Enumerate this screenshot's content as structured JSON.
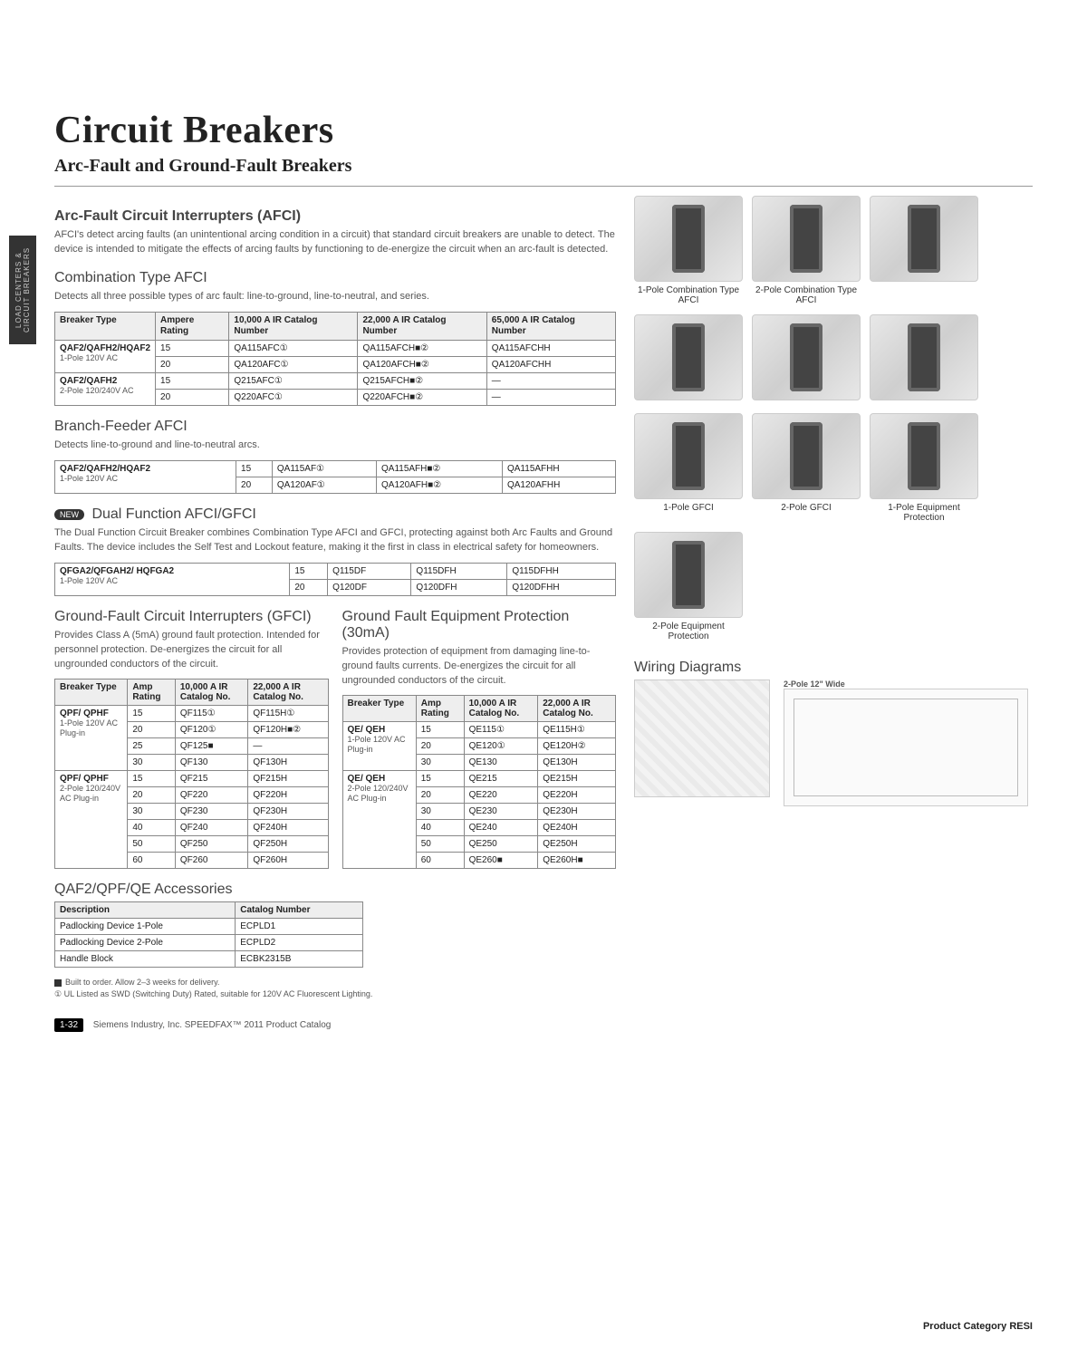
{
  "title": "Circuit Breakers",
  "subtitle": "Arc-Fault and Ground-Fault Breakers",
  "vtab": "LOAD CENTERS & CIRCUIT BREAKERS",
  "afci": {
    "heading": "Arc-Fault Circuit Interrupters (AFCI)",
    "desc": "AFCI's detect arcing faults (an unintentional arcing condition in a circuit) that standard circuit breakers are unable to detect. The device is intended to mitigate the effects of arcing faults by functioning to de-energize the circuit when an arc-fault is detected."
  },
  "comb": {
    "heading": "Combination Type AFCI",
    "desc": "Detects all three possible types of arc fault: line-to-ground, line-to-neutral, and series.",
    "cols": [
      "Breaker Type",
      "Ampere Rating",
      "10,000 A IR Catalog Number",
      "22,000 A IR Catalog Number",
      "65,000 A IR Catalog Number"
    ],
    "rows": [
      {
        "type": "QAF2/QAFH2/HQAF2",
        "sub": "1-Pole 120V AC",
        "amps": [
          "15",
          "20"
        ],
        "c10": [
          "QA115AFC①",
          "QA120AFC①"
        ],
        "c22": [
          "QA115AFCH■②",
          "QA120AFCH■②"
        ],
        "c65": [
          "QA115AFCHH",
          "QA120AFCHH"
        ]
      },
      {
        "type": "QAF2/QAFH2",
        "sub": "2-Pole 120/240V AC",
        "amps": [
          "15",
          "20"
        ],
        "c10": [
          "Q215AFC①",
          "Q220AFC①"
        ],
        "c22": [
          "Q215AFCH■②",
          "Q220AFCH■②"
        ],
        "c65": [
          "—",
          "—"
        ]
      }
    ]
  },
  "branch": {
    "heading": "Branch-Feeder AFCI",
    "desc": "Detects line-to-ground and line-to-neutral arcs.",
    "rows": [
      {
        "type": "QAF2/QAFH2/HQAF2",
        "sub": "1-Pole 120V AC",
        "amps": [
          "15",
          "20"
        ],
        "c10": [
          "QA115AF①",
          "QA120AF①"
        ],
        "c22": [
          "QA115AFH■②",
          "QA120AFH■②"
        ],
        "c65": [
          "QA115AFHH",
          "QA120AFHH"
        ]
      }
    ]
  },
  "dual": {
    "heading": "Dual Function AFCI/GFCI",
    "badge": "NEW",
    "desc": "The Dual Function Circuit Breaker combines Combination Type AFCI and GFCI, protecting against both Arc Faults and Ground Faults. The device includes the Self Test and Lockout feature, making it the first in class in electrical safety for homeowners.",
    "rows": [
      {
        "type": "QFGA2/QFGAH2/ HQFGA2",
        "sub": "1-Pole 120V AC",
        "amps": [
          "15",
          "20"
        ],
        "c10": [
          "Q115DF",
          "Q120DF"
        ],
        "c22": [
          "Q115DFH",
          "Q120DFH"
        ],
        "c65": [
          "Q115DFHH",
          "Q120DFHH"
        ]
      }
    ]
  },
  "gfci": {
    "heading": "Ground-Fault Circuit Interrupters (GFCI)",
    "desc": "Provides Class A (5mA) ground fault protection. Intended for personnel protection. De-energizes the circuit for all ungrounded conductors of the circuit.",
    "cols": [
      "Breaker Type",
      "Amp Rating",
      "10,000 A IR Catalog No.",
      "22,000 A IR Catalog No."
    ],
    "rows": [
      {
        "type": "QPF/ QPHF",
        "sub": "1-Pole 120V AC Plug-in",
        "amps": [
          "15",
          "20",
          "25",
          "30"
        ],
        "c10": [
          "QF115①",
          "QF120①",
          "QF125■",
          "QF130"
        ],
        "c22": [
          "QF115H①",
          "QF120H■②",
          "—",
          "QF130H"
        ]
      },
      {
        "type": "QPF/ QPHF",
        "sub": "2-Pole 120/240V AC Plug-in",
        "amps": [
          "15",
          "20",
          "30",
          "40",
          "50",
          "60"
        ],
        "c10": [
          "QF215",
          "QF220",
          "QF230",
          "QF240",
          "QF250",
          "QF260"
        ],
        "c22": [
          "QF215H",
          "QF220H",
          "QF230H",
          "QF240H",
          "QF250H",
          "QF260H"
        ]
      }
    ]
  },
  "gfep": {
    "heading": "Ground Fault Equipment Protection (30mA)",
    "desc": "Provides protection of equipment from damaging line-to-ground faults currents. De-energizes the circuit for all ungrounded conductors of the circuit.",
    "rows": [
      {
        "type": "QE/ QEH",
        "sub": "1-Pole 120V AC Plug-in",
        "amps": [
          "15",
          "20",
          "30"
        ],
        "c10": [
          "QE115①",
          "QE120①",
          "QE130"
        ],
        "c22": [
          "QE115H①",
          "QE120H②",
          "QE130H"
        ]
      },
      {
        "type": "QE/ QEH",
        "sub": "2-Pole 120/240V AC Plug-in",
        "amps": [
          "15",
          "20",
          "30",
          "40",
          "50",
          "60"
        ],
        "c10": [
          "QE215",
          "QE220",
          "QE230",
          "QE240",
          "QE250",
          "QE260■"
        ],
        "c22": [
          "QE215H",
          "QE220H",
          "QE230H",
          "QE240H",
          "QE250H",
          "QE260H■"
        ]
      }
    ]
  },
  "acc": {
    "heading": "QAF2/QPF/QE Accessories",
    "cols": [
      "Description",
      "Catalog Number"
    ],
    "rows": [
      [
        "Padlocking Device 1-Pole",
        "ECPLD1"
      ],
      [
        "Padlocking Device 2-Pole",
        "ECPLD2"
      ],
      [
        "Handle Block",
        "ECBK2315B"
      ]
    ]
  },
  "notes": [
    "Built to order. Allow 2–3 weeks for delivery.",
    "UL Listed as SWD (Switching Duty) Rated, suitable for 120V AC Fluorescent Lighting."
  ],
  "products": [
    {
      "label": "1-Pole Combination Type AFCI"
    },
    {
      "label": "2-Pole Combination Type AFCI"
    },
    {
      "label": ""
    },
    {
      "label": ""
    },
    {
      "label": ""
    },
    {
      "label": ""
    },
    {
      "label": "1-Pole GFCI"
    },
    {
      "label": "2-Pole GFCI"
    },
    {
      "label": "1-Pole Equipment Protection"
    },
    {
      "label": "2-Pole Equipment Protection"
    }
  ],
  "wiring_heading": "Wiring Diagrams",
  "wiring_caption": "2-Pole 12\" Wide",
  "footer_page": "1-32",
  "footer_text": "Siemens Industry, Inc. SPEEDFAX™ 2011 Product Catalog",
  "cat_right": "Product Category RESI"
}
